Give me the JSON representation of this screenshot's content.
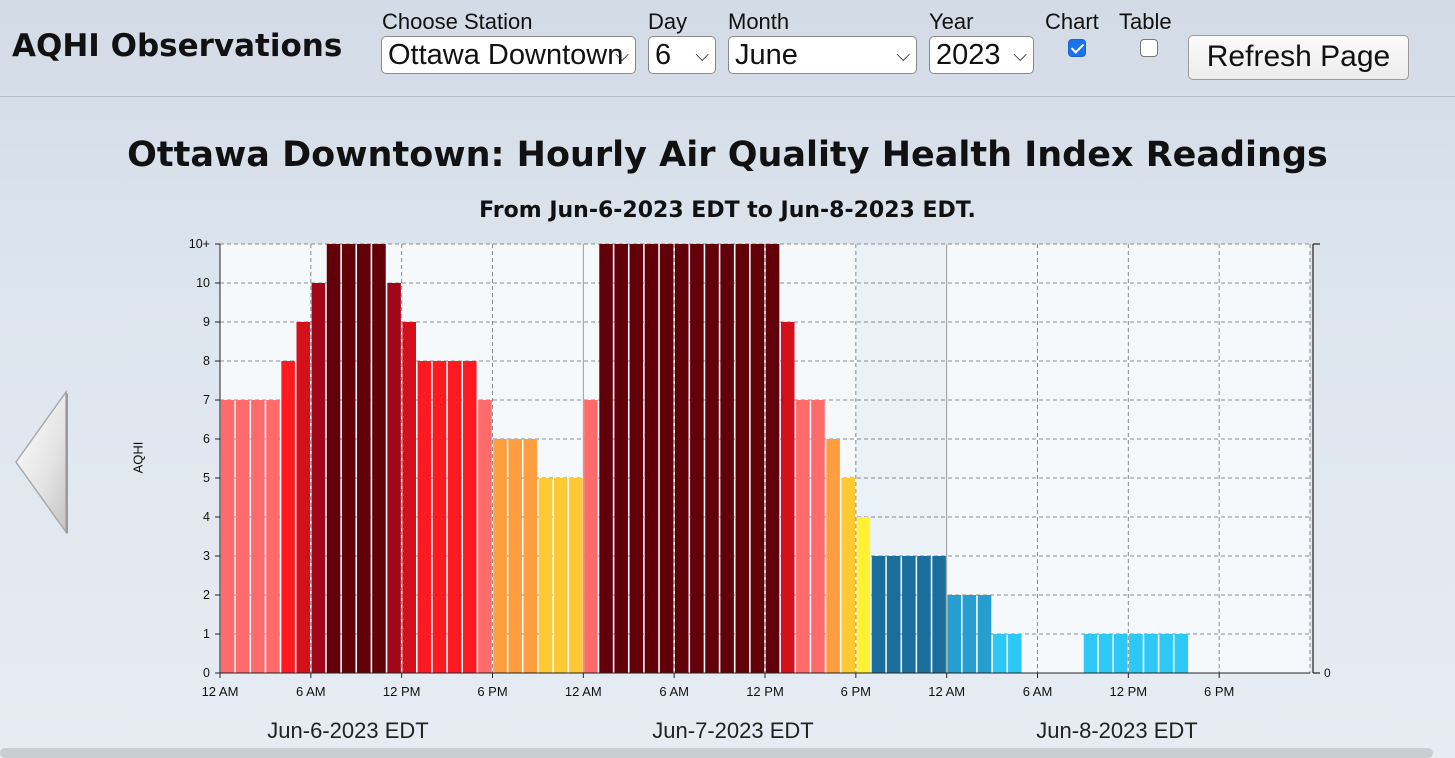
{
  "header": {
    "app_title": "AQHI Observations",
    "station_label": "Choose Station",
    "station_value": "Ottawa Downtown",
    "day_label": "Day",
    "day_value": "6",
    "month_label": "Month",
    "month_value": "June",
    "year_label": "Year",
    "year_value": "2023",
    "chart_label": "Chart",
    "chart_checked": true,
    "table_label": "Table",
    "table_checked": false,
    "refresh_label": "Refresh Page"
  },
  "colors": {
    "aqhi_1": "#2ec8f6",
    "aqhi_2": "#269ecf",
    "aqhi_3": "#1a6e9b",
    "aqhi_4": "#fff133",
    "aqhi_5": "#ffc934",
    "aqhi_6": "#ff9e3e",
    "aqhi_7": "#ff6b6b",
    "aqhi_8": "#ff1a22",
    "aqhi_9": "#d4101a",
    "aqhi_10": "#a0081a",
    "aqhi_10plus": "#62000a"
  },
  "chart_data": {
    "type": "bar",
    "title": "Ottawa Downtown: Hourly Air Quality Health Index Readings",
    "subtitle": "From Jun-6-2023 EDT to Jun-8-2023 EDT.",
    "ylabel": "AQHI",
    "y_ticks": [
      "0",
      "1",
      "2",
      "3",
      "4",
      "5",
      "6",
      "7",
      "8",
      "9",
      "10",
      "10+"
    ],
    "ylim": [
      0,
      11
    ],
    "right_axis_tick": "0",
    "x_tick_labels": [
      "12 AM",
      "6 AM",
      "12 PM",
      "6 PM",
      "12 AM",
      "6 AM",
      "12 PM",
      "6 PM",
      "12 AM",
      "6 AM",
      "12 PM",
      "6 PM"
    ],
    "day_labels": [
      "Jun-6-2023 EDT",
      "Jun-7-2023 EDT",
      "Jun-8-2023 EDT"
    ],
    "x_unit": "hour since Jun-6-2023 12 AM EDT",
    "grid": true,
    "values": [
      7,
      7,
      7,
      7,
      8,
      9,
      10,
      11,
      11,
      11,
      11,
      10,
      9,
      8,
      8,
      8,
      8,
      7,
      6,
      6,
      6,
      5,
      5,
      5,
      7,
      11,
      11,
      11,
      11,
      11,
      11,
      11,
      11,
      11,
      11,
      11,
      11,
      9,
      7,
      7,
      6,
      5,
      4,
      3,
      3,
      3,
      3,
      3,
      2,
      2,
      2,
      1,
      1,
      null,
      null,
      null,
      null,
      1,
      1,
      1,
      1,
      1,
      1,
      1,
      null,
      null,
      null,
      null,
      null,
      null,
      null,
      null
    ]
  }
}
